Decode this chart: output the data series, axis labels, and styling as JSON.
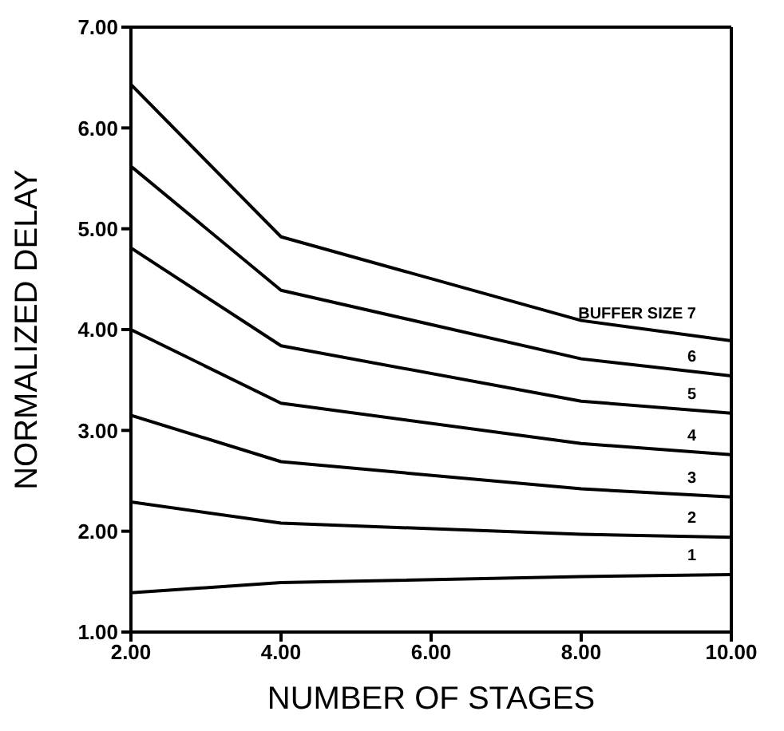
{
  "chart_data": {
    "type": "line",
    "xlabel": "NUMBER OF STAGES",
    "ylabel": "NORMALIZED DELAY",
    "x": [
      2,
      4,
      8,
      10
    ],
    "series": [
      {
        "name": "BUFFER SIZE 7",
        "color": "#000000",
        "values": [
          6.43,
          4.92,
          4.09,
          3.89
        ]
      },
      {
        "name": "6",
        "color": "#000000",
        "values": [
          5.62,
          4.39,
          3.71,
          3.54
        ]
      },
      {
        "name": "5",
        "color": "#000000",
        "values": [
          4.81,
          3.84,
          3.29,
          3.17
        ]
      },
      {
        "name": "4",
        "color": "#000000",
        "values": [
          4.0,
          3.27,
          2.87,
          2.76
        ]
      },
      {
        "name": "3",
        "color": "#000000",
        "values": [
          3.15,
          2.69,
          2.42,
          2.34
        ]
      },
      {
        "name": "2",
        "color": "#000000",
        "values": [
          2.29,
          2.08,
          1.97,
          1.94
        ]
      },
      {
        "name": "1",
        "color": "#000000",
        "values": [
          1.39,
          1.49,
          1.55,
          1.57
        ]
      }
    ],
    "xlim": [
      2,
      10
    ],
    "ylim": [
      1,
      7
    ],
    "xticks": [
      {
        "value": 2,
        "label": "2.00"
      },
      {
        "value": 4,
        "label": "4.00"
      },
      {
        "value": 6,
        "label": "6.00"
      },
      {
        "value": 8,
        "label": "8.00"
      },
      {
        "value": 10,
        "label": "10.00"
      }
    ],
    "yticks": [
      {
        "value": 1,
        "label": "1.00"
      },
      {
        "value": 2,
        "label": "2.00"
      },
      {
        "value": 3,
        "label": "3.00"
      },
      {
        "value": 4,
        "label": "4.00"
      },
      {
        "value": 5,
        "label": "5.00"
      },
      {
        "value": 6,
        "label": "6.00"
      },
      {
        "value": 7,
        "label": "7.00"
      }
    ],
    "grid": false,
    "legend": false,
    "marker": "none",
    "line_style": "solid"
  }
}
